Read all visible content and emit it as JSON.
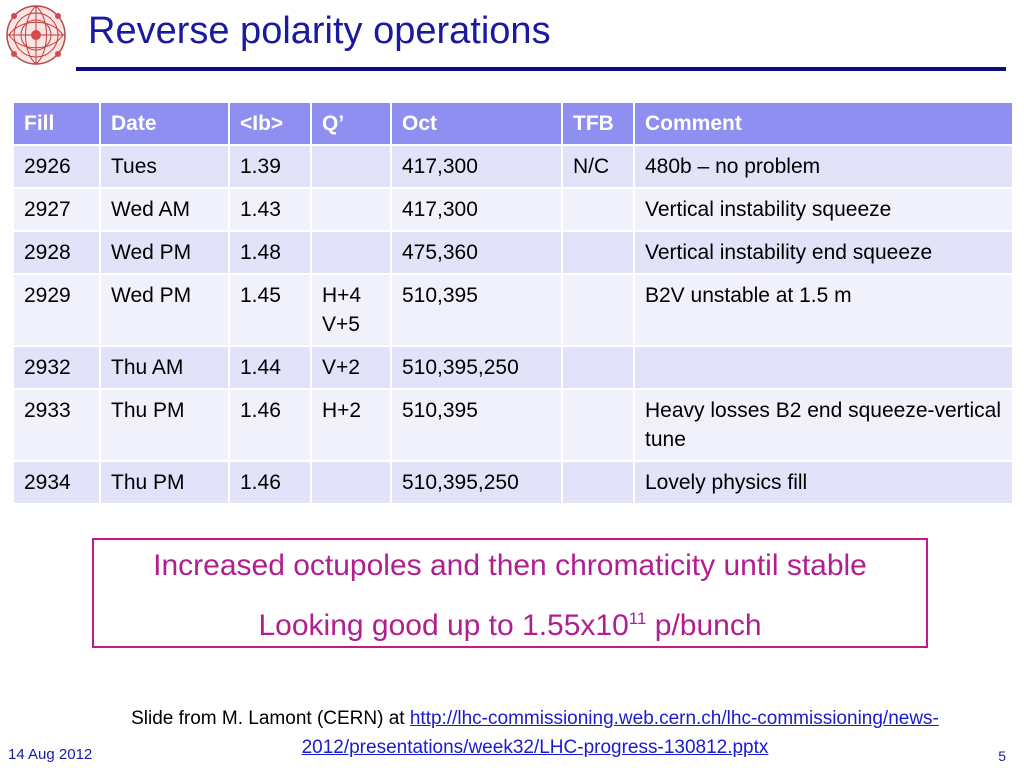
{
  "title": "Reverse polarity operations",
  "table": {
    "headers": [
      "Fill",
      "Date",
      "<Ib>",
      "Q’",
      "Oct",
      "TFB",
      "Comment"
    ],
    "rows": [
      [
        "2926",
        "Tues",
        "1.39",
        "",
        "417,300",
        "N/C",
        "480b – no problem"
      ],
      [
        "2927",
        "Wed AM",
        "1.43",
        "",
        "417,300",
        "",
        "Vertical instability squeeze"
      ],
      [
        "2928",
        "Wed PM",
        "1.48",
        "",
        "475,360",
        "",
        "Vertical instability end squeeze"
      ],
      [
        "2929",
        "Wed PM",
        "1.45",
        "H+4\nV+5",
        "510,395",
        "",
        "B2V unstable at 1.5 m"
      ],
      [
        "2932",
        "Thu AM",
        "1.44",
        "V+2",
        "510,395,250",
        "",
        ""
      ],
      [
        "2933",
        "Thu PM",
        "1.46",
        "H+2",
        "510,395",
        "",
        "Heavy losses B2 end squeeze-vertical tune"
      ],
      [
        "2934",
        "Thu PM",
        "1.46",
        "",
        "510,395,250",
        "",
        "Lovely physics fill"
      ]
    ]
  },
  "callout": {
    "line1": "Increased octupoles and then chromaticity until stable",
    "line2_prefix": "Looking good up to 1.55x10",
    "line2_exp": "11",
    "line2_suffix": " p/bunch"
  },
  "source": {
    "prefix": "Slide from M. Lamont (CERN) at ",
    "link_text": "http://lhc-commissioning.web.cern.ch/lhc-commissioning/news-2012/presentations/week32/LHC-progress-130812.pptx"
  },
  "footer": {
    "date": "14 Aug 2012",
    "page": "5"
  },
  "colors": {
    "title": "#1a1aa0",
    "header_bg": "#8f8ff2",
    "row_odd": "#e2e2f9",
    "row_even": "#f1f1fc",
    "callout": "#b01e90"
  },
  "logo": {
    "icon": "lhc-logo-icon"
  }
}
